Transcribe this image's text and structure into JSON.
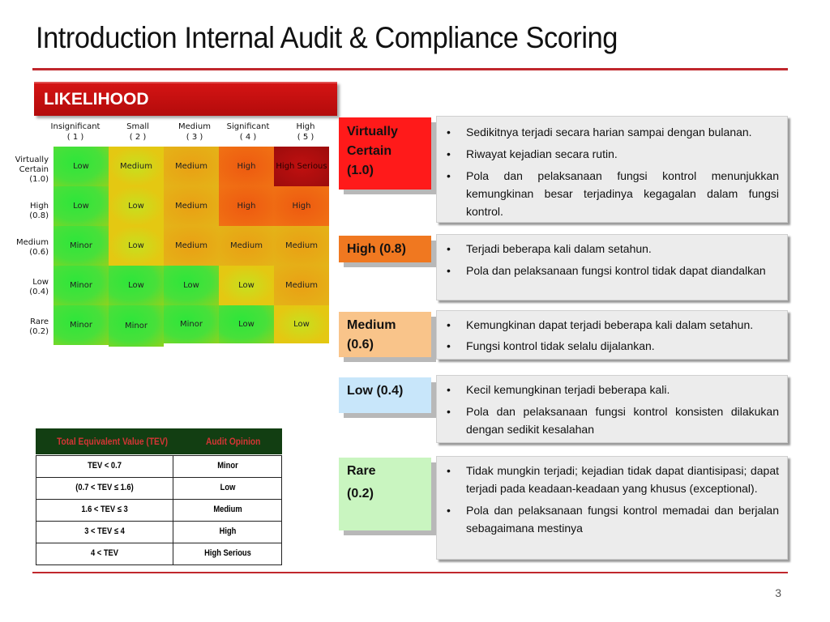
{
  "title": "Introduction Internal Audit & Compliance Scoring",
  "page_number": "3",
  "likelihood_banner": "LIKELIHOOD",
  "matrix": {
    "columns": [
      {
        "name": "Insignificant",
        "score": "( 1 )"
      },
      {
        "name": "Small",
        "score": "( 2 )"
      },
      {
        "name": "Medium",
        "score": "( 3 )"
      },
      {
        "name": "Significant",
        "score": "( 4 )"
      },
      {
        "name": "High",
        "score": "( 5 )"
      }
    ],
    "rows": [
      {
        "name": "Virtually Certain",
        "score": "(1.0)",
        "cells": [
          "Low",
          "Medium",
          "Medium",
          "High",
          "High Serious"
        ]
      },
      {
        "name": "High",
        "score": "(0.8)",
        "cells": [
          "Low",
          "Low",
          "Medium",
          "High",
          "High"
        ]
      },
      {
        "name": "Medium",
        "score": "(0.6)",
        "cells": [
          "Minor",
          "Low",
          "Medium",
          "Medium",
          "Medium"
        ]
      },
      {
        "name": "Low",
        "score": "(0.4)",
        "cells": [
          "Minor",
          "Low",
          "Low",
          "Low",
          "Medium"
        ]
      },
      {
        "name": "Rare",
        "score": "(0.2)",
        "cells": [
          "Minor",
          "Minor",
          "Minor",
          "Low",
          "Low"
        ]
      }
    ]
  },
  "tev_table": {
    "headers": [
      "Total Equivalent Value (TEV)",
      "Audit Opinion"
    ],
    "rows": [
      [
        "TEV < 0.7",
        "Minor"
      ],
      [
        "(0.7 < TEV ≤ 1.6)",
        "Low"
      ],
      [
        "1.6 < TEV ≤ 3",
        "Medium"
      ],
      [
        "3 < TEV ≤ 4",
        "High"
      ],
      [
        "4 < TEV",
        "High Serious"
      ]
    ]
  },
  "levels": [
    {
      "label_line1": "Virtually",
      "label_line2": "Certain",
      "label_line3": "(1.0)",
      "color": "#ff1a1a",
      "bullets": [
        "Sedikitnya terjadi secara harian sampai dengan bulanan.",
        "Riwayat kejadian secara rutin.",
        "Pola dan pelaksanaan fungsi kontrol menunjukkan kemungkinan besar terjadinya kegagalan  dalam fungsi kontrol."
      ]
    },
    {
      "label_line1": "High (0.8)",
      "color": "#f07820",
      "bullets": [
        "Terjadi beberapa kali dalam setahun.",
        "Pola dan pelaksanaan fungsi kontrol tidak dapat diandalkan"
      ]
    },
    {
      "label_line1": "Medium",
      "label_line2": "(0.6)",
      "color": "#f9c48a",
      "bullets": [
        "Kemungkinan dapat terjadi beberapa kali dalam setahun.",
        "Fungsi kontrol tidak selalu dijalankan."
      ]
    },
    {
      "label_line1": "Low (0.4)",
      "color": "#c8e6fa",
      "bullets": [
        "Kecil kemungkinan terjadi beberapa kali.",
        "Pola dan pelaksanaan fungsi kontrol konsisten dilakukan dengan sedikit kesalahan"
      ]
    },
    {
      "label_line1": "Rare",
      "label_line2": "(0.2)",
      "color": "#c9f5c0",
      "bullets": [
        "Tidak mungkin terjadi; kejadian tidak dapat diantisipasi; dapat terjadi pada keadaan-keadaan  yang khusus (exceptional).",
        "Pola dan pelaksanaan fungsi kontrol memadai dan berjalan sebagaimana mestinya"
      ]
    }
  ]
}
